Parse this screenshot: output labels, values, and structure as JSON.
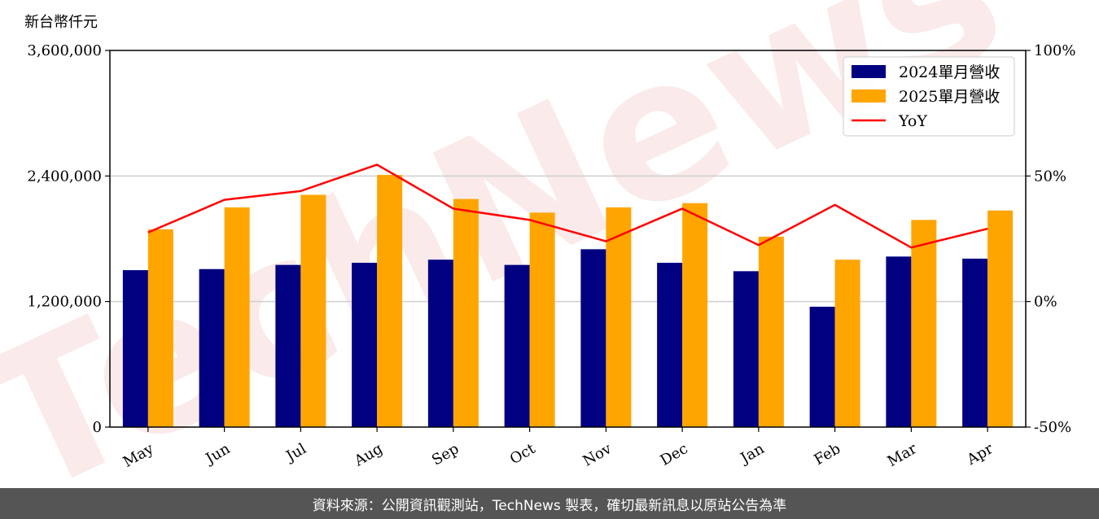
{
  "chart_data": {
    "type": "bar",
    "unit_label": "新台幣仟元",
    "watermark": "TechNews",
    "categories": [
      "May",
      "Jun",
      "Jul",
      "Aug",
      "Sep",
      "Oct",
      "Nov",
      "Dec",
      "Jan",
      "Feb",
      "Mar",
      "Apr"
    ],
    "series": [
      {
        "name": "2024單月營收",
        "type": "bar",
        "color": "#000080",
        "values": [
          1500000,
          1510000,
          1550000,
          1570000,
          1600000,
          1550000,
          1700000,
          1570000,
          1490000,
          1150000,
          1630000,
          1610000
        ]
      },
      {
        "name": "2025單月營收",
        "type": "bar",
        "color": "#FFA500",
        "values": [
          1890000,
          2100000,
          2220000,
          2410000,
          2180000,
          2050000,
          2100000,
          2140000,
          1820000,
          1600000,
          1980000,
          2070000
        ]
      }
    ],
    "line_series": {
      "name": "YoY",
      "color": "#FF0000",
      "axis": "right",
      "values": [
        27.5,
        40.5,
        44,
        54.5,
        37,
        32.5,
        24,
        37,
        22.5,
        38.5,
        21.5,
        29
      ]
    },
    "y_left": {
      "min": 0,
      "max": 3600000,
      "ticks": [
        "0",
        "1,200,000",
        "2,400,000",
        "3,600,000"
      ],
      "tick_values": [
        0,
        1200000,
        2400000,
        3600000
      ]
    },
    "y_right": {
      "min": -50,
      "max": 100,
      "ticks": [
        "-50%",
        "0%",
        "50%",
        "100%"
      ],
      "tick_values": [
        -50,
        0,
        50,
        100
      ]
    },
    "grid": "horizontal",
    "legend_position": "top-right"
  },
  "footer": {
    "text": "資料來源：公開資訊觀測站，TechNews 製表，確切最新訊息以原站公告為準"
  }
}
